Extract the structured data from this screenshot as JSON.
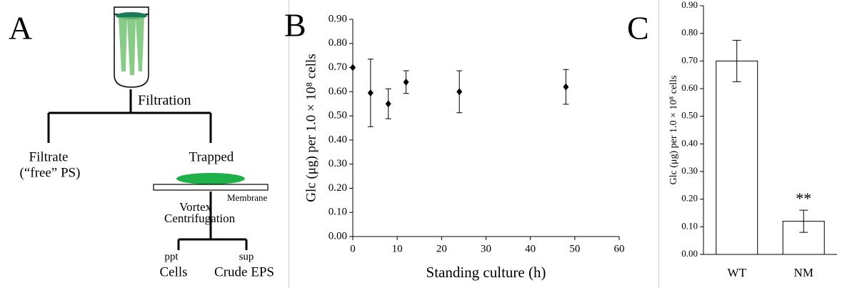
{
  "diagram": {
    "label": "A",
    "steps": {
      "filtration": "Filtration",
      "filtrate": "Filtrate",
      "filtrate_note": "(“free” PS)",
      "trapped": "Trapped",
      "membrane": "Membrane",
      "vortex": "Vortex",
      "centrifugation": "Centrifugation",
      "ppt": "ppt",
      "sup": "sup",
      "cells": "Cells",
      "crude_eps": "Crude EPS"
    }
  },
  "chart_data": [
    {
      "type": "scatter",
      "panel": "B",
      "xlabel": "Standing culture (h)",
      "ylabel": "Glc (μg) per 1.0 × 10⁸ cells",
      "x": [
        0,
        4,
        8,
        12,
        24,
        48
      ],
      "values": [
        0.7,
        0.595,
        0.55,
        0.64,
        0.6,
        0.62
      ],
      "errors": [
        0,
        0.14,
        0.062,
        0.047,
        0.087,
        0.072
      ],
      "color": "#000000",
      "xlim": [
        0,
        60
      ],
      "xticks": [
        0,
        10,
        20,
        30,
        40,
        50,
        60
      ],
      "ylim": [
        0,
        0.9
      ],
      "yticks": [
        {
          "value": 0,
          "label": "0.00"
        },
        {
          "value": 0.1,
          "label": "0.10"
        },
        {
          "value": 0.2,
          "label": "0.20"
        },
        {
          "value": 0.3,
          "label": "0.30"
        },
        {
          "value": 0.4,
          "label": "0.40"
        },
        {
          "value": 0.5,
          "label": "0.50"
        },
        {
          "value": 0.6,
          "label": "0.60"
        },
        {
          "value": 0.7,
          "label": "0.70"
        },
        {
          "value": 0.8,
          "label": "0.80"
        },
        {
          "value": 0.9,
          "label": "0.90"
        }
      ]
    },
    {
      "type": "bar",
      "panel": "C",
      "ylabel": "Glc (μg) per 1.0 × 10⁸ cells",
      "categories": [
        "WT",
        "NM"
      ],
      "values": [
        0.7,
        0.12
      ],
      "errors": [
        0.075,
        0.04
      ],
      "annotations": [
        "",
        "**"
      ],
      "color": "#ffffff",
      "ylim": [
        0,
        0.9
      ],
      "yticks": [
        {
          "value": 0,
          "label": "0.00"
        },
        {
          "value": 0.1,
          "label": "0.10"
        },
        {
          "value": 0.2,
          "label": "0.20"
        },
        {
          "value": 0.3,
          "label": "0.30"
        },
        {
          "value": 0.4,
          "label": "0.40"
        },
        {
          "value": 0.5,
          "label": "0.50"
        },
        {
          "value": 0.6,
          "label": "0.60"
        },
        {
          "value": 0.7,
          "label": "0.70"
        },
        {
          "value": 0.8,
          "label": "0.80"
        },
        {
          "value": 0.9,
          "label": "0.90"
        }
      ]
    }
  ]
}
